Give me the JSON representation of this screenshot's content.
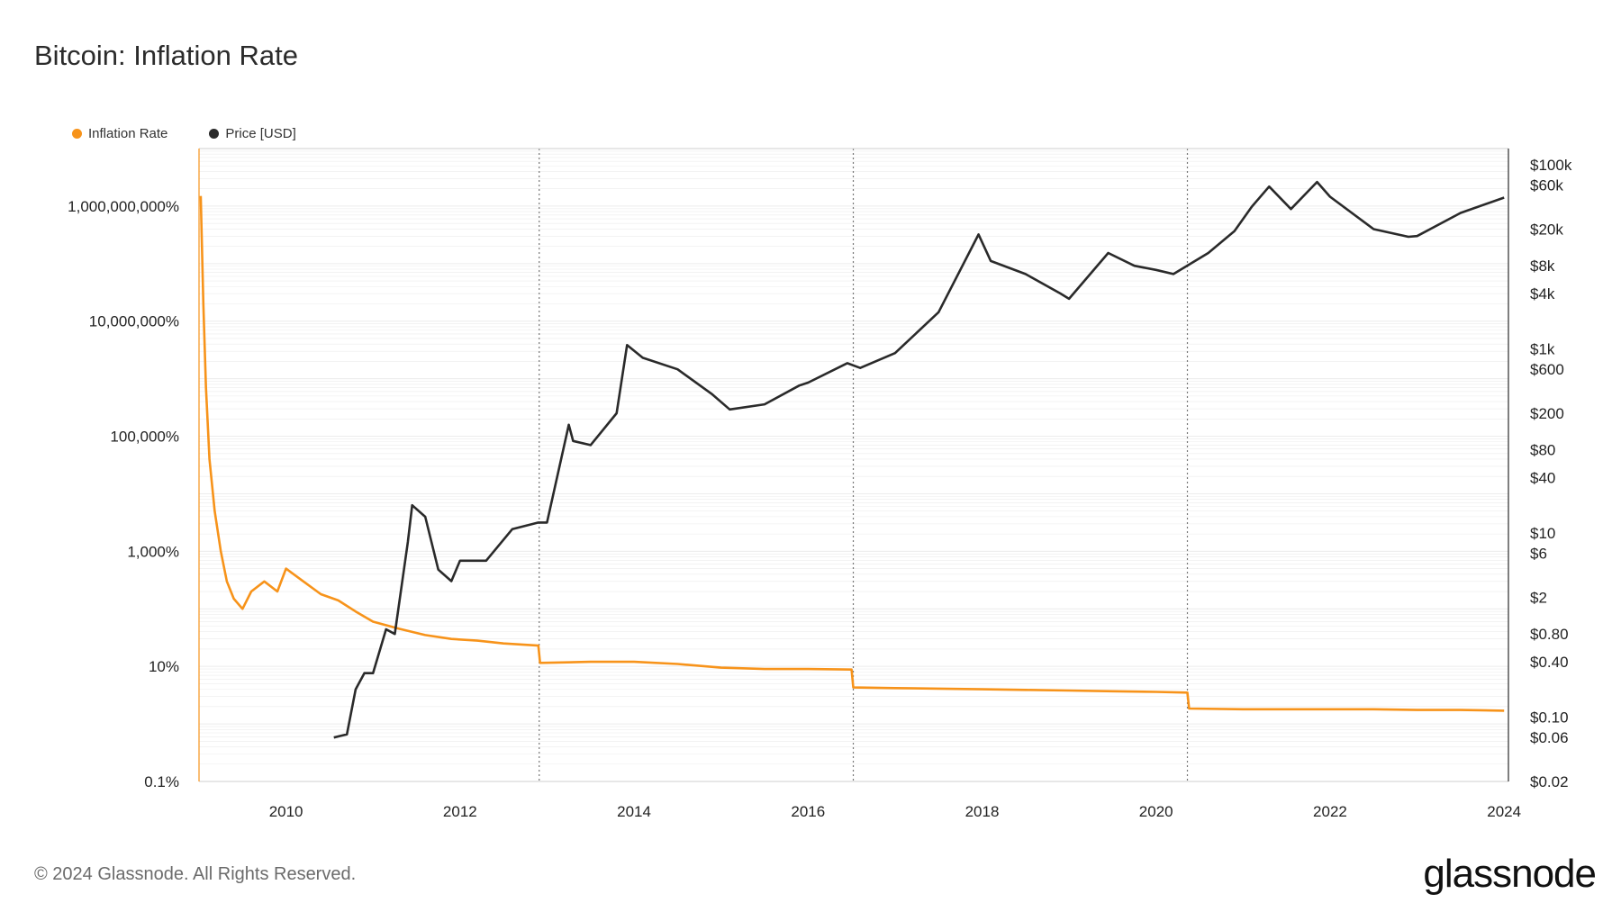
{
  "title": "Bitcoin: Inflation Rate",
  "footer": "© 2024 Glassnode. All Rights Reserved.",
  "brand": "glassnode",
  "colors": {
    "inflation": "#f7931a",
    "price": "#2a2a2a",
    "grid": "#ececec",
    "axis": "#cfcfcf",
    "halving": "#777777"
  },
  "chart_data": {
    "type": "line",
    "title": "Bitcoin: Inflation Rate",
    "legend": {
      "placement": "top-left"
    },
    "grid": true,
    "x_axis": {
      "range": [
        2009.0,
        2024.05
      ],
      "ticks": [
        "2010",
        "2012",
        "2014",
        "2016",
        "2018",
        "2020",
        "2022",
        "2024"
      ],
      "tick_values": [
        2010,
        2012,
        2014,
        2016,
        2018,
        2020,
        2022,
        2024
      ]
    },
    "y_left": {
      "scale": "log",
      "range": [
        0.1,
        10000000000
      ],
      "ticks": [
        "1,000,000,000%",
        "10,000,000%",
        "100,000%",
        "1,000%",
        "10%",
        "0.1%"
      ],
      "tick_values": [
        1000000000,
        10000000,
        100000,
        1000,
        10,
        0.1
      ]
    },
    "y_right": {
      "scale": "log",
      "range": [
        0.02,
        150000
      ],
      "ticks": [
        "$100k",
        "$60k",
        "$20k",
        "$8k",
        "$4k",
        "$1k",
        "$600",
        "$200",
        "$80",
        "$40",
        "$10",
        "$6",
        "$2",
        "$0.80",
        "$0.40",
        "$0.10",
        "$0.06",
        "$0.02"
      ],
      "tick_values": [
        100000,
        60000,
        20000,
        8000,
        4000,
        1000,
        600,
        200,
        80,
        40,
        10,
        6,
        2,
        0.8,
        0.4,
        0.1,
        0.06,
        0.02
      ]
    },
    "halvings": [
      2012.91,
      2016.52,
      2020.36
    ],
    "series": [
      {
        "name": "Inflation Rate",
        "axis": "left",
        "x": [
          2009.02,
          2009.05,
          2009.08,
          2009.12,
          2009.18,
          2009.25,
          2009.32,
          2009.4,
          2009.5,
          2009.6,
          2009.75,
          2009.9,
          2010.0,
          2010.2,
          2010.4,
          2010.6,
          2010.8,
          2011.0,
          2011.3,
          2011.6,
          2011.9,
          2012.2,
          2012.5,
          2012.9,
          2012.92,
          2013.5,
          2014.0,
          2014.5,
          2015.0,
          2015.5,
          2016.0,
          2016.5,
          2016.52,
          2017.0,
          2017.5,
          2018.0,
          2018.5,
          2019.0,
          2019.5,
          2020.0,
          2020.36,
          2020.38,
          2021.0,
          2021.5,
          2022.0,
          2022.5,
          2023.0,
          2023.5,
          2024.0
        ],
        "values": [
          1500000000,
          20000000,
          700000,
          40000,
          5000,
          1000,
          300,
          150,
          100,
          200,
          300,
          200,
          500,
          300,
          180,
          140,
          90,
          60,
          45,
          35,
          30,
          28,
          25,
          23,
          11.5,
          12,
          12,
          11,
          9.5,
          9,
          9,
          8.8,
          4.3,
          4.2,
          4.1,
          4.0,
          3.9,
          3.8,
          3.7,
          3.6,
          3.5,
          1.85,
          1.8,
          1.8,
          1.8,
          1.8,
          1.75,
          1.75,
          1.7
        ]
      },
      {
        "name": "Price [USD]",
        "axis": "right",
        "x": [
          2010.55,
          2010.7,
          2010.8,
          2010.9,
          2011.0,
          2011.15,
          2011.25,
          2011.4,
          2011.45,
          2011.6,
          2011.75,
          2011.9,
          2012.0,
          2012.3,
          2012.6,
          2012.9,
          2013.0,
          2013.25,
          2013.3,
          2013.5,
          2013.8,
          2013.92,
          2014.1,
          2014.5,
          2014.9,
          2015.1,
          2015.5,
          2015.9,
          2016.0,
          2016.45,
          2016.6,
          2017.0,
          2017.5,
          2017.96,
          2018.1,
          2018.5,
          2018.9,
          2019.0,
          2019.45,
          2019.75,
          2020.0,
          2020.2,
          2020.6,
          2020.9,
          2021.1,
          2021.3,
          2021.55,
          2021.85,
          2022.0,
          2022.5,
          2022.9,
          2023.0,
          2023.5,
          2024.0
        ],
        "values": [
          0.06,
          0.065,
          0.2,
          0.3,
          0.3,
          0.9,
          0.8,
          8,
          20,
          15,
          4,
          3,
          5,
          5,
          11,
          13,
          13,
          150,
          100,
          90,
          200,
          1100,
          800,
          600,
          320,
          220,
          250,
          400,
          430,
          700,
          620,
          900,
          2500,
          17500,
          9000,
          6500,
          4000,
          3500,
          11000,
          8000,
          7200,
          6500,
          11000,
          19000,
          35000,
          58000,
          33000,
          65000,
          45000,
          20000,
          16500,
          16800,
          30000,
          44000
        ]
      }
    ]
  }
}
